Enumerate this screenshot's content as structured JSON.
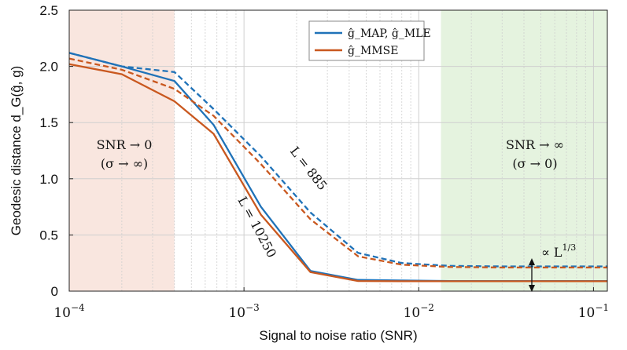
{
  "chart_data": {
    "type": "line",
    "title": "",
    "xlabel": "Signal to noise ratio (SNR)",
    "ylabel": "Geodesic distance d_G(ĝ, g)",
    "xscale": "log",
    "xlim": [
      0.0001,
      0.12
    ],
    "ylim": [
      0,
      2.5
    ],
    "grid": true,
    "x_ticks": [
      {
        "value": 0.0001,
        "base": "10",
        "exp": "−4"
      },
      {
        "value": 0.001,
        "base": "10",
        "exp": "−3"
      },
      {
        "value": 0.01,
        "base": "10",
        "exp": "−2"
      },
      {
        "value": 0.1,
        "base": "10",
        "exp": "−1"
      }
    ],
    "y_ticks": [
      {
        "value": 0,
        "label": "0"
      },
      {
        "value": 0.5,
        "label": "0.5"
      },
      {
        "value": 1.0,
        "label": "1.0"
      },
      {
        "value": 1.5,
        "label": "1.5"
      },
      {
        "value": 2.0,
        "label": "2.0"
      },
      {
        "value": 2.5,
        "label": "2.5"
      }
    ],
    "regions": [
      {
        "name": "low-snr",
        "x_from": 0.0001,
        "x_to": 0.0004,
        "color": "#f9e6df"
      },
      {
        "name": "high-snr",
        "x_from": 0.0134,
        "x_to": 0.12,
        "color": "#e5f3df"
      }
    ],
    "colors": {
      "blue": "#1f72b8",
      "orange": "#c9581f",
      "grid": "#cfcfcf"
    },
    "legend": {
      "position": "top-center",
      "entries": [
        {
          "label": "ĝ_MAP, ĝ_MLE",
          "color": "#1f72b8"
        },
        {
          "label": "ĝ_MMSE",
          "color": "#c9581f"
        }
      ]
    },
    "series": [
      {
        "name": "MAP/MLE, L = 10250",
        "color": "#1f72b8",
        "style": "solid",
        "x": [
          0.0001,
          0.0002,
          0.0004,
          0.00067,
          0.00125,
          0.0024,
          0.0045,
          0.008,
          0.015,
          0.03,
          0.06,
          0.12
        ],
        "values": [
          2.12,
          2.0,
          1.87,
          1.48,
          0.75,
          0.18,
          0.1,
          0.095,
          0.09,
          0.09,
          0.09,
          0.09
        ]
      },
      {
        "name": "MAP/MLE, L = 885",
        "color": "#1f72b8",
        "style": "dashed",
        "x": [
          0.0001,
          0.0002,
          0.0004,
          0.00067,
          0.00125,
          0.0024,
          0.0045,
          0.008,
          0.015,
          0.03,
          0.06,
          0.12
        ],
        "values": [
          2.12,
          2.0,
          1.95,
          1.62,
          1.2,
          0.7,
          0.34,
          0.25,
          0.225,
          0.22,
          0.22,
          0.22
        ]
      },
      {
        "name": "MMSE, L = 10250",
        "color": "#c9581f",
        "style": "solid",
        "x": [
          0.0001,
          0.0002,
          0.0004,
          0.00067,
          0.00125,
          0.0024,
          0.0045,
          0.008,
          0.015,
          0.03,
          0.06,
          0.12
        ],
        "values": [
          2.02,
          1.93,
          1.69,
          1.4,
          0.68,
          0.17,
          0.09,
          0.088,
          0.088,
          0.088,
          0.088,
          0.088
        ]
      },
      {
        "name": "MMSE, L = 885",
        "color": "#c9581f",
        "style": "dashed",
        "x": [
          0.0001,
          0.0002,
          0.0004,
          0.00067,
          0.00125,
          0.0024,
          0.0045,
          0.008,
          0.015,
          0.03,
          0.06,
          0.12
        ],
        "values": [
          2.07,
          1.97,
          1.8,
          1.56,
          1.13,
          0.64,
          0.31,
          0.235,
          0.215,
          0.21,
          0.21,
          0.21
        ]
      }
    ],
    "annotations": {
      "low_snr_line1": "SNR → 0",
      "low_snr_line2": "(σ → ∞)",
      "high_snr_line1": "SNR  → ∞",
      "high_snr_line2": "(σ → 0)",
      "label_885": "L = 885",
      "label_10250": "L = 10250",
      "scaling": "∝ L",
      "scaling_exp": "1/3"
    }
  }
}
